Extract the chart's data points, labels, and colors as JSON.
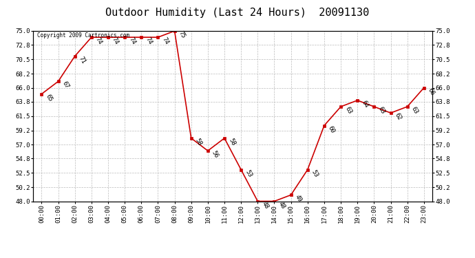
{
  "title": "Outdoor Humidity (Last 24 Hours)  20091130",
  "copyright": "Copyright 2009 Cartronics.com",
  "hours": [
    0,
    1,
    2,
    3,
    4,
    5,
    6,
    7,
    8,
    9,
    10,
    11,
    12,
    13,
    14,
    15,
    16,
    17,
    18,
    19,
    20,
    21,
    22,
    23
  ],
  "hour_labels": [
    "00:00",
    "01:00",
    "02:00",
    "03:00",
    "04:00",
    "05:00",
    "06:00",
    "07:00",
    "08:00",
    "09:00",
    "10:00",
    "11:00",
    "12:00",
    "13:00",
    "14:00",
    "15:00",
    "16:00",
    "17:00",
    "18:00",
    "19:00",
    "20:00",
    "21:00",
    "22:00",
    "23:00"
  ],
  "values": [
    65,
    67,
    71,
    74,
    74,
    74,
    74,
    74,
    75,
    58,
    56,
    58,
    53,
    48,
    48,
    49,
    53,
    60,
    63,
    64,
    63,
    62,
    63,
    66
  ],
  "ylim": [
    48.0,
    75.0
  ],
  "yticks": [
    48.0,
    50.2,
    52.5,
    54.8,
    57.0,
    59.2,
    61.5,
    63.8,
    66.0,
    68.2,
    70.5,
    72.8,
    75.0
  ],
  "line_color": "#cc0000",
  "marker_color": "#cc0000",
  "bg_color": "#ffffff",
  "grid_color": "#bbbbbb",
  "title_fontsize": 11,
  "label_fontsize": 6.5,
  "annot_fontsize": 6.5
}
